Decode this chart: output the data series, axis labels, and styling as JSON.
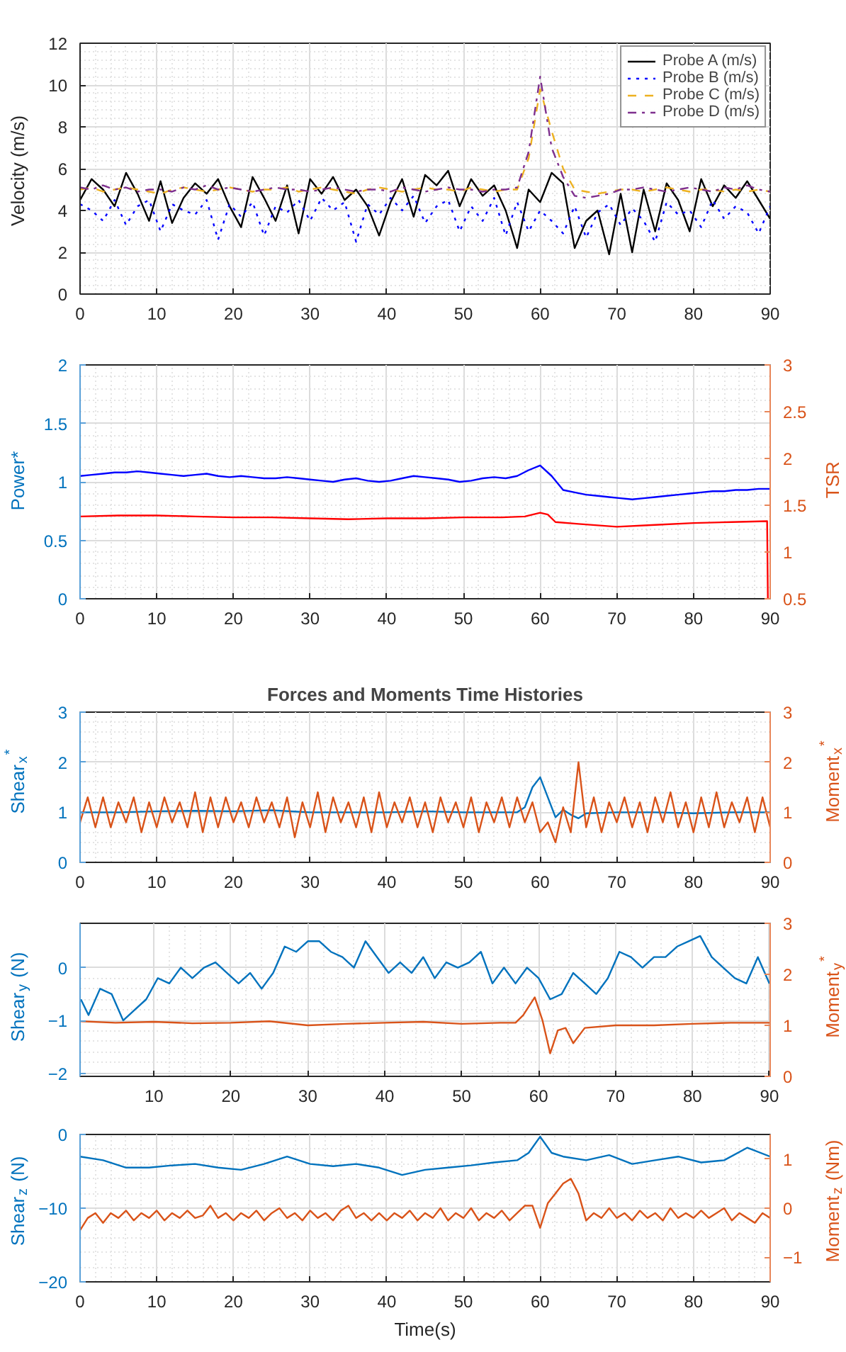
{
  "chart_data": [
    {
      "type": "line",
      "ylabel": "Velocity (m/s)",
      "xlim": [
        0,
        90
      ],
      "ylim": [
        0,
        12
      ],
      "xticks": [
        0,
        10,
        20,
        30,
        40,
        50,
        60,
        70,
        80,
        90
      ],
      "yticks": [
        0,
        2,
        4,
        6,
        8,
        10,
        12
      ],
      "grid": true,
      "legend": "top right",
      "x": [
        0,
        1.5,
        3,
        4.5,
        6,
        7.5,
        9,
        10.5,
        12,
        13.5,
        15,
        16.5,
        18,
        19.5,
        21,
        22.5,
        24,
        25.5,
        27,
        28.5,
        30,
        31.5,
        33,
        34.5,
        36,
        37.5,
        39,
        40.5,
        42,
        43.5,
        45,
        46.5,
        48,
        49.5,
        51,
        52.5,
        54,
        55.5,
        57,
        58.5,
        60,
        61.5,
        63,
        64.5,
        66,
        67.5,
        69,
        70.5,
        72,
        73.5,
        75,
        76.5,
        78,
        79.5,
        81,
        82.5,
        84,
        85.5,
        87,
        88.5,
        90
      ],
      "series": [
        {
          "name": "Probe A (m/s)",
          "color": "#000000",
          "line_style": "solid",
          "values": [
            4.5,
            5.5,
            5.0,
            4.2,
            5.8,
            4.8,
            3.5,
            5.4,
            3.4,
            4.6,
            5.3,
            4.8,
            5.5,
            4.2,
            3.2,
            5.6,
            4.6,
            3.5,
            5.2,
            2.9,
            5.5,
            4.8,
            5.6,
            4.5,
            5.0,
            4.2,
            2.8,
            4.4,
            5.5,
            3.7,
            5.7,
            5.2,
            5.9,
            4.2,
            5.5,
            4.7,
            5.2,
            4.0,
            2.2,
            5.0,
            4.4,
            5.8,
            5.3,
            2.2,
            3.5,
            4.0,
            1.9,
            4.8,
            2.0,
            5.0,
            3.0,
            5.3,
            4.5,
            3.0,
            5.5,
            4.2,
            5.2,
            4.6,
            5.4,
            4.5,
            3.6
          ]
        },
        {
          "name": "Probe B (m/s)",
          "color": "#0000ff",
          "line_style": "dotted",
          "values": [
            4.3,
            4.0,
            3.5,
            4.5,
            3.3,
            4.2,
            4.5,
            3.0,
            4.3,
            4.0,
            3.8,
            4.5,
            2.6,
            4.3,
            3.7,
            4.4,
            2.8,
            4.2,
            3.9,
            4.5,
            3.5,
            4.6,
            4.0,
            4.4,
            2.5,
            4.3,
            3.8,
            4.6,
            4.0,
            4.7,
            3.4,
            4.2,
            4.5,
            3.0,
            4.2,
            3.5,
            4.6,
            2.8,
            4.4,
            3.0,
            4.0,
            3.5,
            2.9,
            4.2,
            2.7,
            3.9,
            4.3,
            3.3,
            4.1,
            3.5,
            2.5,
            4.4,
            3.8,
            4.0,
            3.2,
            4.5,
            3.6,
            4.2,
            3.9,
            2.9,
            4.2
          ]
        },
        {
          "name": "Probe C (m/s)",
          "color": "#edb120",
          "line_style": "dashed",
          "values": [
            5.0,
            5.1,
            4.9,
            5.0,
            5.1,
            5.0,
            4.9,
            4.8,
            5.0,
            5.1,
            5.0,
            4.9,
            5.0,
            5.1,
            5.0,
            4.9,
            5.0,
            5.0,
            5.1,
            4.9,
            5.0,
            5.1,
            5.0,
            4.9,
            4.8,
            5.0,
            5.1,
            5.0,
            4.9,
            5.0,
            5.1,
            5.0,
            5.0,
            4.9,
            5.1,
            5.0,
            4.9,
            5.0,
            5.0,
            6.5,
            9.8,
            7.8,
            6.0,
            5.0,
            4.9,
            4.8,
            4.9,
            5.0,
            5.0,
            4.9,
            5.0,
            5.1,
            5.0,
            4.9,
            5.0,
            5.0,
            4.9,
            5.0,
            4.9,
            5.0,
            4.9
          ]
        },
        {
          "name": "Probe D (m/s)",
          "color": "#7e2f8e",
          "line_style": "dashdot",
          "values": [
            5.1,
            5.0,
            5.2,
            5.0,
            5.1,
            4.9,
            5.0,
            5.0,
            4.9,
            5.1,
            5.0,
            5.2,
            5.0,
            5.1,
            5.0,
            4.9,
            5.0,
            5.1,
            5.0,
            5.0,
            4.9,
            5.0,
            5.1,
            5.0,
            4.9,
            5.0,
            5.0,
            4.9,
            5.1,
            5.0,
            4.9,
            5.0,
            5.1,
            5.0,
            5.0,
            4.9,
            5.0,
            5.0,
            5.1,
            6.8,
            10.4,
            7.0,
            5.6,
            4.7,
            4.6,
            4.7,
            4.8,
            5.0,
            5.0,
            5.1,
            5.0,
            4.9,
            5.0,
            5.1,
            5.0,
            4.9,
            5.1,
            5.0,
            5.2,
            5.0,
            4.9
          ]
        }
      ]
    },
    {
      "type": "line",
      "ylabel": "Power*",
      "y2label": "TSR",
      "xlim": [
        0,
        90
      ],
      "ylim": [
        0,
        2
      ],
      "y2lim": [
        0.5,
        3
      ],
      "xticks": [
        0,
        10,
        20,
        30,
        40,
        50,
        60,
        70,
        80,
        90
      ],
      "yticks": [
        0,
        0.5,
        1,
        1.5,
        2
      ],
      "y2ticks": [
        0.5,
        1,
        1.5,
        2,
        2.5,
        3
      ],
      "grid": true,
      "x": [
        0,
        1.5,
        3,
        4.5,
        6,
        7.5,
        9,
        10.5,
        12,
        13.5,
        15,
        16.5,
        18,
        19.5,
        21,
        22.5,
        24,
        25.5,
        27,
        28.5,
        30,
        31.5,
        33,
        34.5,
        36,
        37.5,
        39,
        40.5,
        42,
        43.5,
        45,
        46.5,
        48,
        49.5,
        51,
        52.5,
        54,
        55.5,
        57,
        58.5,
        60,
        61.5,
        63,
        64.5,
        66,
        67.5,
        69,
        70.5,
        72,
        73.5,
        75,
        76.5,
        78,
        79.5,
        81,
        82.5,
        84,
        85.5,
        87,
        88.5,
        90
      ],
      "series": [
        {
          "color": "#0000ff",
          "values": [
            1.05,
            1.06,
            1.07,
            1.08,
            1.08,
            1.09,
            1.08,
            1.07,
            1.06,
            1.05,
            1.06,
            1.07,
            1.05,
            1.04,
            1.05,
            1.04,
            1.03,
            1.03,
            1.04,
            1.03,
            1.02,
            1.01,
            1.0,
            1.02,
            1.03,
            1.01,
            1.0,
            1.01,
            1.03,
            1.05,
            1.04,
            1.03,
            1.02,
            1.0,
            1.01,
            1.03,
            1.04,
            1.03,
            1.05,
            1.1,
            1.14,
            1.05,
            0.93,
            0.91,
            0.89,
            0.88,
            0.87,
            0.86,
            0.85,
            0.86,
            0.87,
            0.88,
            0.89,
            0.9,
            0.91,
            0.92,
            0.92,
            0.93,
            0.93,
            0.94,
            0.94
          ]
        },
        {
          "color": "#ff0000",
          "axis": "y2",
          "x": [
            0,
            5,
            10,
            15,
            20,
            25,
            30,
            35,
            40,
            45,
            50,
            55,
            58,
            60,
            61,
            62,
            65,
            70,
            75,
            80,
            85,
            89.6,
            89.7
          ],
          "values": [
            1.38,
            1.39,
            1.39,
            1.38,
            1.37,
            1.37,
            1.36,
            1.35,
            1.36,
            1.36,
            1.37,
            1.37,
            1.38,
            1.42,
            1.4,
            1.32,
            1.3,
            1.27,
            1.29,
            1.31,
            1.32,
            1.33,
            0.5
          ]
        }
      ]
    },
    {
      "type": "line",
      "title": "Forces and Moments Time Histories",
      "ylabel": "Shear$_{x}$$^{*}$",
      "y2label": "Moment$_{x}$$^{*}$",
      "xlim": [
        0,
        90
      ],
      "ylim": [
        0,
        3
      ],
      "y2lim": [
        0,
        3
      ],
      "xticks": [
        0,
        10,
        20,
        30,
        40,
        50,
        60,
        70,
        80,
        90
      ],
      "yticks": [
        0,
        1,
        2,
        3
      ],
      "y2ticks": [
        0,
        1,
        2,
        3
      ],
      "grid": true,
      "series": [
        {
          "color": "#0072bd",
          "x": [
            0,
            5,
            10,
            15,
            20,
            25,
            30,
            35,
            40,
            45,
            50,
            55,
            57,
            58,
            59,
            60,
            61,
            62,
            63,
            64,
            65,
            66,
            70,
            75,
            80,
            85,
            90
          ],
          "values": [
            1.0,
            1.0,
            1.02,
            1.03,
            1.02,
            1.04,
            1.0,
            1.0,
            1.0,
            1.02,
            1.0,
            1.0,
            1.0,
            1.1,
            1.5,
            1.7,
            1.3,
            0.9,
            1.05,
            0.95,
            0.88,
            0.98,
            1.0,
            1.0,
            0.98,
            1.0,
            1.0
          ]
        },
        {
          "color": "#d95319",
          "axis": "y2",
          "x": [
            0,
            1,
            2,
            3,
            4,
            5,
            6,
            7,
            8,
            9,
            10,
            11,
            12,
            13,
            14,
            15,
            16,
            17,
            18,
            19,
            20,
            21,
            22,
            23,
            24,
            25,
            26,
            27,
            28,
            29,
            30,
            31,
            32,
            33,
            34,
            35,
            36,
            37,
            38,
            39,
            40,
            41,
            42,
            43,
            44,
            45,
            46,
            47,
            48,
            49,
            50,
            51,
            52,
            53,
            54,
            55,
            56,
            57,
            58,
            59,
            60,
            61,
            62,
            63,
            64,
            65,
            66,
            67,
            68,
            69,
            70,
            71,
            72,
            73,
            74,
            75,
            76,
            77,
            78,
            79,
            80,
            81,
            82,
            83,
            84,
            85,
            86,
            87,
            88,
            89,
            90
          ],
          "values": [
            0.8,
            1.3,
            0.7,
            1.3,
            0.7,
            1.2,
            0.8,
            1.3,
            0.6,
            1.2,
            0.7,
            1.3,
            0.8,
            1.2,
            0.7,
            1.4,
            0.6,
            1.3,
            0.7,
            1.3,
            0.8,
            1.2,
            0.7,
            1.3,
            0.8,
            1.2,
            0.7,
            1.3,
            0.5,
            1.2,
            0.7,
            1.4,
            0.6,
            1.3,
            0.8,
            1.2,
            0.7,
            1.3,
            0.6,
            1.4,
            0.7,
            1.2,
            0.8,
            1.3,
            0.7,
            1.2,
            0.6,
            1.3,
            0.8,
            1.2,
            0.7,
            1.3,
            0.6,
            1.2,
            0.8,
            1.3,
            0.7,
            1.3,
            0.8,
            1.2,
            0.6,
            0.8,
            0.4,
            1.1,
            0.6,
            2.0,
            0.7,
            1.3,
            0.6,
            1.2,
            0.8,
            1.3,
            0.7,
            1.2,
            0.6,
            1.3,
            0.8,
            1.4,
            0.7,
            1.2,
            0.6,
            1.3,
            0.7,
            1.4,
            0.7,
            1.2,
            0.8,
            1.3,
            0.6,
            1.3,
            0.7
          ]
        }
      ]
    },
    {
      "type": "line",
      "ylabel": "Shear$_{y}$ (N)",
      "y2label": "Moment$_{y}$$^{*}$",
      "xlim": [
        0.4,
        90.1
      ],
      "ylim": [
        -2.06,
        0.84
      ],
      "y2lim": [
        0,
        3
      ],
      "xticks": [
        10,
        20,
        30,
        40,
        50,
        60,
        70,
        80,
        90
      ],
      "yticks": [
        -2,
        -1,
        0
      ],
      "y2ticks": [
        0,
        1,
        2,
        3
      ],
      "grid": true,
      "series": [
        {
          "color": "#0072bd",
          "x": [
            0.5,
            1.5,
            3,
            4.5,
            6,
            7.5,
            9,
            10.5,
            12,
            13.5,
            15,
            16.5,
            18,
            19.5,
            21,
            22.5,
            24,
            25.5,
            27,
            28.5,
            30,
            31.5,
            33,
            34.5,
            36,
            37.5,
            39,
            40.5,
            42,
            43.5,
            45,
            46.5,
            48,
            49.5,
            51,
            52.5,
            54,
            55.5,
            57,
            58.5,
            60,
            61.5,
            63,
            64.5,
            66,
            67.5,
            69,
            70.5,
            72,
            73.5,
            75,
            76.5,
            78,
            79.5,
            81,
            82.5,
            84,
            85.5,
            87,
            88.5,
            90
          ],
          "values": [
            -0.6,
            -0.9,
            -0.4,
            -0.5,
            -1.0,
            -0.8,
            -0.6,
            -0.2,
            -0.3,
            0.0,
            -0.2,
            0.0,
            0.1,
            -0.1,
            -0.3,
            -0.1,
            -0.4,
            -0.1,
            0.4,
            0.3,
            0.5,
            0.5,
            0.3,
            0.2,
            0.0,
            0.5,
            0.2,
            -0.1,
            0.1,
            -0.1,
            0.2,
            -0.2,
            0.1,
            0.0,
            0.1,
            0.3,
            -0.3,
            0.0,
            -0.3,
            0.0,
            -0.2,
            -0.6,
            -0.5,
            -0.1,
            -0.3,
            -0.5,
            -0.2,
            0.3,
            0.2,
            0.0,
            0.2,
            0.2,
            0.4,
            0.5,
            0.6,
            0.2,
            0.0,
            -0.2,
            -0.3,
            0.2,
            -0.3
          ]
        },
        {
          "color": "#d95319",
          "axis": "y2",
          "x": [
            0.5,
            5,
            10,
            15,
            20,
            25,
            30,
            35,
            40,
            45,
            50,
            55,
            57,
            58,
            59.5,
            60.5,
            61.5,
            62.5,
            63.5,
            64.5,
            66,
            70,
            75,
            80,
            85,
            90
          ],
          "values": [
            1.08,
            1.05,
            1.07,
            1.04,
            1.05,
            1.08,
            1.0,
            1.03,
            1.05,
            1.07,
            1.03,
            1.05,
            1.05,
            1.2,
            1.55,
            1.1,
            0.45,
            0.9,
            0.95,
            0.65,
            0.95,
            1.0,
            1.0,
            1.03,
            1.05,
            1.05
          ]
        }
      ]
    },
    {
      "type": "line",
      "xlabel": "Time(s)",
      "ylabel": "Shear$_{z}$ (N)",
      "y2label": "Moment$_{z}$ (Nm)",
      "xlim": [
        0,
        90
      ],
      "ylim": [
        -20,
        0
      ],
      "y2lim": [
        -1.5,
        1.5
      ],
      "xticks": [
        0,
        10,
        20,
        30,
        40,
        50,
        60,
        70,
        80,
        90
      ],
      "yticks": [
        -20,
        -10,
        0
      ],
      "y2ticks": [
        -1,
        0,
        1
      ],
      "grid": true,
      "series": [
        {
          "color": "#0072bd",
          "x": [
            0,
            3,
            6,
            9,
            12,
            15,
            18,
            21,
            24,
            27,
            30,
            33,
            36,
            39,
            42,
            45,
            48,
            51,
            54,
            57,
            58.5,
            60,
            61.5,
            63,
            66,
            69,
            72,
            75,
            78,
            81,
            84,
            87,
            90
          ],
          "values": [
            -3,
            -3.5,
            -4.5,
            -4.5,
            -4.2,
            -4.0,
            -4.5,
            -4.8,
            -4.0,
            -3.0,
            -4.0,
            -4.3,
            -4.0,
            -4.5,
            -5.5,
            -4.8,
            -4.5,
            -4.2,
            -3.8,
            -3.5,
            -2.5,
            -0.3,
            -2.5,
            -3.0,
            -3.5,
            -2.8,
            -4.0,
            -3.5,
            -3.0,
            -3.8,
            -3.5,
            -1.8,
            -3.0
          ]
        },
        {
          "color": "#d95319",
          "axis": "y2",
          "x": [
            0,
            1,
            2,
            3,
            4,
            5,
            6,
            7,
            8,
            9,
            10,
            11,
            12,
            13,
            14,
            15,
            16,
            17,
            18,
            19,
            20,
            21,
            22,
            23,
            24,
            25,
            26,
            27,
            28,
            29,
            30,
            31,
            32,
            33,
            34,
            35,
            36,
            37,
            38,
            39,
            40,
            41,
            42,
            43,
            44,
            45,
            46,
            47,
            48,
            49,
            50,
            51,
            52,
            53,
            54,
            55,
            56,
            57,
            58,
            59,
            60,
            61,
            62,
            63,
            64,
            65,
            66,
            67,
            68,
            69,
            70,
            71,
            72,
            73,
            74,
            75,
            76,
            77,
            78,
            79,
            80,
            81,
            82,
            83,
            84,
            85,
            86,
            87,
            88,
            89,
            90
          ],
          "values": [
            -0.45,
            -0.2,
            -0.1,
            -0.3,
            -0.1,
            -0.2,
            -0.05,
            -0.25,
            -0.1,
            -0.2,
            -0.05,
            -0.25,
            -0.1,
            -0.2,
            -0.05,
            -0.2,
            -0.15,
            0.05,
            -0.2,
            -0.1,
            -0.25,
            -0.1,
            -0.2,
            -0.05,
            -0.25,
            -0.1,
            0.0,
            -0.2,
            -0.1,
            -0.25,
            -0.05,
            -0.2,
            -0.1,
            -0.25,
            -0.05,
            0.05,
            -0.2,
            -0.1,
            -0.25,
            -0.1,
            -0.25,
            -0.1,
            -0.2,
            -0.05,
            -0.25,
            -0.1,
            -0.2,
            0.0,
            -0.25,
            -0.1,
            -0.2,
            0.0,
            -0.25,
            -0.1,
            -0.2,
            -0.05,
            -0.25,
            -0.1,
            0.05,
            0.05,
            -0.4,
            0.1,
            0.3,
            0.5,
            0.6,
            0.3,
            -0.25,
            -0.1,
            -0.2,
            0.0,
            -0.2,
            -0.1,
            -0.25,
            -0.05,
            -0.2,
            -0.1,
            -0.25,
            0.0,
            -0.2,
            -0.1,
            -0.2,
            -0.05,
            -0.2,
            -0.1,
            0.0,
            -0.25,
            -0.1,
            -0.2,
            -0.3,
            -0.1,
            -0.2
          ]
        }
      ]
    }
  ]
}
